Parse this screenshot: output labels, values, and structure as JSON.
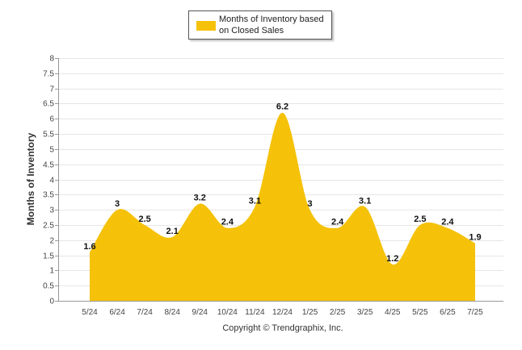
{
  "chart_data": {
    "type": "area",
    "x": [
      "5/24",
      "6/24",
      "7/24",
      "8/24",
      "9/24",
      "10/24",
      "11/24",
      "12/24",
      "1/25",
      "2/25",
      "3/25",
      "4/25",
      "5/25",
      "6/25",
      "7/25"
    ],
    "series": [
      {
        "name": "Months of Inventory based on Closed Sales",
        "values": [
          1.6,
          3,
          2.5,
          2.1,
          3.2,
          2.4,
          3.1,
          6.2,
          3,
          2.4,
          3.1,
          1.2,
          2.5,
          2.4,
          1.9
        ],
        "labels": [
          "1.6",
          "3",
          "2.5",
          "2.1",
          "3.2",
          "2.4",
          "3.1",
          "6.2",
          "3",
          "2.4",
          "3.1",
          "1.2",
          "2.5",
          "2.4",
          "1.9"
        ],
        "color": "#f5c209"
      }
    ],
    "ylabel": "Months of Inventory",
    "ylim": [
      0,
      8
    ],
    "yticks": [
      "0",
      "0.5",
      "1",
      "1.5",
      "2",
      "2.5",
      "3",
      "3.5",
      "4",
      "4.5",
      "5",
      "5.5",
      "6",
      "6.5",
      "7",
      "7.5",
      "8"
    ],
    "grid": true,
    "legend": "top-center"
  },
  "legend": {
    "label": "Months of Inventory based on Closed Sales"
  },
  "footer": {
    "copyright": "Copyright © Trendgraphix, Inc."
  }
}
